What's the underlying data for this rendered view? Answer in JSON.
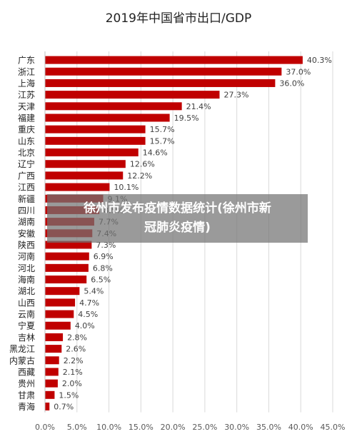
{
  "chart_data": {
    "type": "bar",
    "orientation": "horizontal",
    "title": "2019年中国省市出口/GDP",
    "categories": [
      "广东",
      "浙江",
      "上海",
      "江苏",
      "天津",
      "福建",
      "重庆",
      "山东",
      "北京",
      "辽宁",
      "广西",
      "江西",
      "新疆",
      "四川",
      "湖南",
      "安徽",
      "陕西",
      "河南",
      "河北",
      "海南",
      "湖北",
      "山西",
      "云南",
      "宁夏",
      "吉林",
      "黑龙江",
      "内蒙古",
      "西藏",
      "贵州",
      "甘肃",
      "青海"
    ],
    "values": [
      40.3,
      37.0,
      36.0,
      27.3,
      21.4,
      19.5,
      15.7,
      15.7,
      14.6,
      12.6,
      12.2,
      10.1,
      9.1,
      8.5,
      7.7,
      7.4,
      7.3,
      6.9,
      6.8,
      6.5,
      5.4,
      4.7,
      4.5,
      4.0,
      2.8,
      2.6,
      2.2,
      2.1,
      2.0,
      1.5,
      0.7
    ],
    "data_labels": [
      "40.3%",
      "37.0%",
      "36.0%",
      "27.3%",
      "21.4%",
      "19.5%",
      "15.7%",
      "15.7%",
      "14.6%",
      "12.6%",
      "12.2%",
      "10.1%",
      "9.1%",
      "8.5%",
      "7.7%",
      "7.4%",
      "7.3%",
      "6.9%",
      "6.8%",
      "6.5%",
      "5.4%",
      "4.7%",
      "4.5%",
      "4.0%",
      "2.8%",
      "2.6%",
      "2.2%",
      "2.1%",
      "2.0%",
      "1.5%",
      "0.7%"
    ],
    "xlim": [
      0,
      45
    ],
    "xticks": [
      "0.0%",
      "5.0%",
      "10.0%",
      "15.0%",
      "20.0%",
      "25.0%",
      "30.0%",
      "35.0%",
      "40.0%",
      "45.0%"
    ],
    "grid": true,
    "bar_color": "#c00000"
  },
  "banner": {
    "line1": "徐州市发布疫情数据统计(徐州市新",
    "line2": "冠肺炎疫情)"
  }
}
